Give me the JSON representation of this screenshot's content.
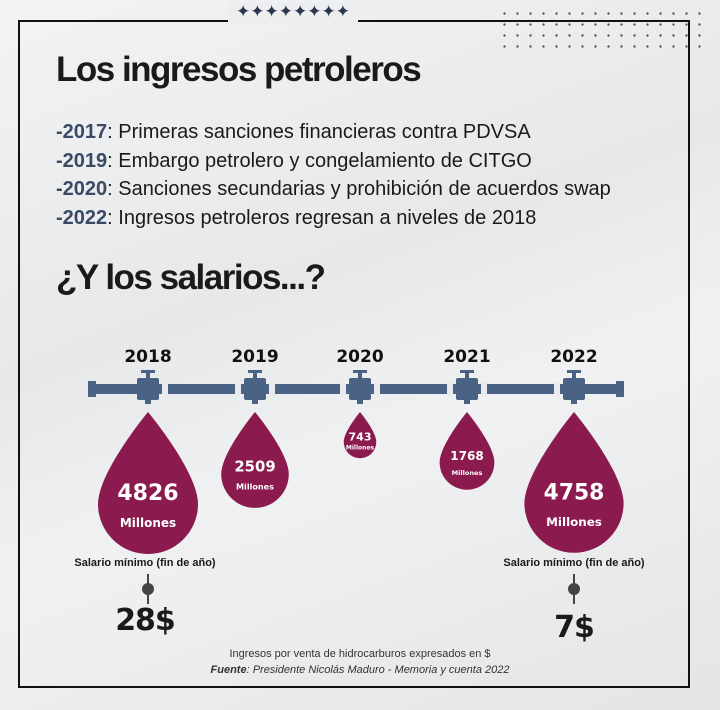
{
  "header": {
    "title": "Los ingresos petroleros",
    "stars": "✦✦✦✦✦✦✦✦"
  },
  "events": [
    {
      "year": "2017",
      "text": ": Primeras sanciones financieras contra PDVSA"
    },
    {
      "year": "2019",
      "text": ": Embargo petrolero y congelamiento de CITGO"
    },
    {
      "year": "2020",
      "text": ": Sanciones secundarias y prohibición de acuerdos swap"
    },
    {
      "year": "2022",
      "text": ": Ingresos petroleros regresan a niveles de 2018"
    }
  ],
  "subtitle": "¿Y los salarios...?",
  "chart_data": {
    "type": "bar",
    "title": "Ingresos petroleros",
    "categories": [
      "2018",
      "2019",
      "2020",
      "2021",
      "2022"
    ],
    "values": [
      4826,
      2509,
      743,
      1768,
      4758
    ],
    "unit_label": "Millones",
    "color": "#8b1a4e",
    "pipe_color": "#4a6385"
  },
  "salaries": [
    {
      "label": "Salario mínimo (fin de año)",
      "value": "28$",
      "year": "2018"
    },
    {
      "label": "Salario mínimo (fin de año)",
      "value": "7$",
      "year": "2022"
    }
  ],
  "footer": {
    "note": "Ingresos por venta de hidrocarburos expresados en $",
    "source_label": "Fuente",
    "source": ": Presidente Nicolás Maduro - Memoria y cuenta 2022"
  }
}
